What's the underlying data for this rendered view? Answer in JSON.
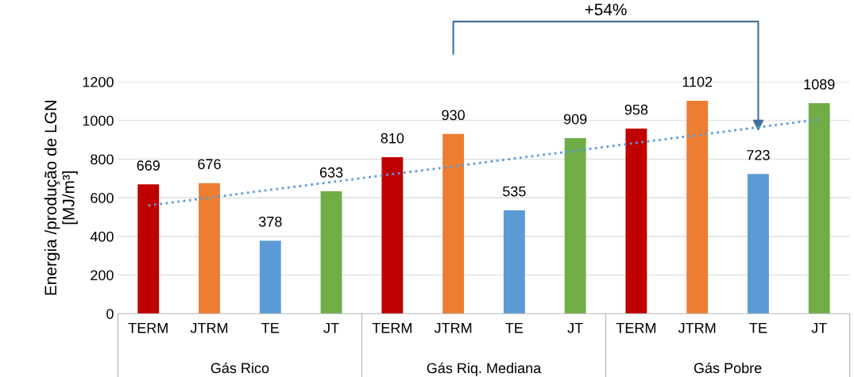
{
  "chart_data": {
    "type": "bar",
    "ylabel": "Energia /produção de LGN\n[MJ/m³]",
    "categories": [
      "TERM",
      "JTRM",
      "TE",
      "JT",
      "TERM",
      "JTRM",
      "TE",
      "JT",
      "TERM",
      "JTRM",
      "TE",
      "JT"
    ],
    "values": [
      669,
      676,
      378,
      633,
      810,
      930,
      535,
      909,
      958,
      1102,
      723,
      1089
    ],
    "colors": [
      "#c00000",
      "#ed7d31",
      "#5b9bd5",
      "#70ad47",
      "#c00000",
      "#ed7d31",
      "#5b9bd5",
      "#70ad47",
      "#c00000",
      "#ed7d31",
      "#5b9bd5",
      "#70ad47"
    ],
    "value_labels": [
      "669",
      "676",
      "378",
      "633",
      "810",
      "930",
      "535",
      "909",
      "958",
      "1102",
      "723",
      "1089"
    ],
    "series": [
      {
        "type": "line",
        "color": "#5b9bd5",
        "line_style": "dotted",
        "values": [
          560,
          600,
          641,
          681,
          722,
          762,
          803,
          843,
          884,
          924,
          965,
          1005
        ]
      }
    ],
    "ylim": [
      0,
      1200
    ],
    "yticks": [
      0,
      200,
      400,
      600,
      800,
      1000,
      1200
    ],
    "grid": "y",
    "annotations": [
      "Gás Rico",
      "Gás Riq. Mediana",
      "Gás Pobre",
      "+54%"
    ]
  }
}
